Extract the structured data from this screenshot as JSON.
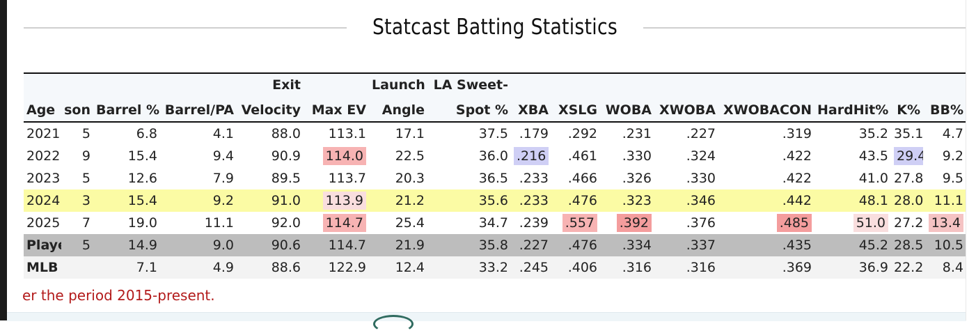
{
  "section": {
    "title": "Statcast Batting Statistics"
  },
  "table": {
    "header_top": [
      "",
      "",
      "",
      "",
      "Exit",
      "",
      "Launch",
      "LA Sweet-",
      "",
      "",
      "",
      "",
      "",
      "",
      "",
      ""
    ],
    "header_bottom": [
      "Age",
      "son",
      "Barrel %",
      "Barrel/PA",
      "Velocity",
      "Max EV",
      "Angle",
      "Spot %",
      "XBA",
      "XSLG",
      "WOBA",
      "XWOBA",
      "XWOBACON",
      "HardHit%",
      "K%",
      "BB%"
    ],
    "rows": [
      {
        "type": "normal",
        "cells": [
          "2021",
          "5",
          "6.8",
          "4.1",
          "88.0",
          "113.1",
          "17.1",
          "37.5",
          ".179",
          ".292",
          ".231",
          ".227",
          ".319",
          "35.2",
          "35.1",
          "4.7"
        ],
        "highlights": {}
      },
      {
        "type": "normal",
        "cells": [
          "2022",
          "9",
          "15.4",
          "9.4",
          "90.9",
          "114.0",
          "22.5",
          "36.0",
          ".216",
          ".461",
          ".330",
          ".324",
          ".422",
          "43.5",
          "29.4",
          "9.2"
        ],
        "highlights": {
          "5": "hl-red-1",
          "8": "hl-blue",
          "14": "hl-blue"
        }
      },
      {
        "type": "normal",
        "cells": [
          "2023",
          "5",
          "12.6",
          "7.9",
          "89.5",
          "113.7",
          "20.3",
          "36.5",
          ".233",
          ".466",
          ".326",
          ".330",
          ".422",
          "41.0",
          "27.8",
          "9.5"
        ],
        "highlights": {}
      },
      {
        "type": "highlight",
        "cells": [
          "2024",
          "3",
          "15.4",
          "9.2",
          "91.0",
          "113.9",
          "21.2",
          "35.6",
          ".233",
          ".476",
          ".323",
          ".346",
          ".442",
          "48.1",
          "28.0",
          "11.1"
        ],
        "highlights": {
          "5": "hl-pink"
        }
      },
      {
        "type": "normal",
        "cells": [
          "2025",
          "7",
          "19.0",
          "11.1",
          "92.0",
          "114.7",
          "25.4",
          "34.7",
          ".239",
          ".557",
          ".392",
          ".376",
          ".485",
          "51.0",
          "27.2",
          "13.4"
        ],
        "highlights": {
          "5": "hl-red-1",
          "9": "hl-red-1",
          "10": "hl-red-2",
          "12": "hl-red-2",
          "13": "hl-pink",
          "15": "hl-pink2"
        }
      },
      {
        "type": "player",
        "cells": [
          "Player",
          "5",
          "14.9",
          "9.0",
          "90.6",
          "114.7",
          "21.9",
          "35.8",
          ".227",
          ".476",
          ".334",
          ".337",
          ".435",
          "45.2",
          "28.5",
          "10.5"
        ],
        "highlights": {}
      },
      {
        "type": "mlb",
        "cells": [
          "MLB",
          "",
          "7.1",
          "4.9",
          "88.6",
          "122.9",
          "12.4",
          "33.2",
          ".245",
          ".406",
          ".316",
          ".316",
          ".369",
          "36.9",
          "22.2",
          "8.4"
        ],
        "highlights": {}
      }
    ]
  },
  "footnote": "er the period 2015-present.",
  "colors": {
    "highlight_row": "#fbfba4",
    "player_row": "#bdbdbd",
    "footnote_text": "#b31b1b",
    "heat_red": "#f49d9d",
    "heat_blue": "#cfcff5"
  }
}
